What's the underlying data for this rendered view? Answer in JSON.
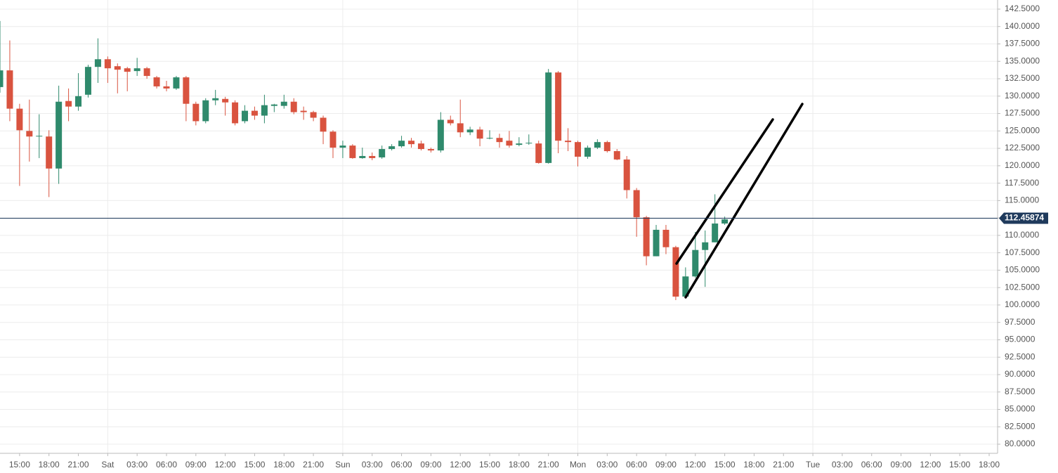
{
  "chart_data": {
    "type": "candlestick",
    "categories": [
      null,
      null,
      "15:00",
      null,
      null,
      "18:00",
      null,
      null,
      "21:00",
      null,
      null,
      "Sat",
      null,
      null,
      "03:00",
      null,
      null,
      "06:00",
      null,
      null,
      "09:00",
      null,
      null,
      "12:00",
      null,
      null,
      "15:00",
      null,
      null,
      "18:00",
      null,
      null,
      "21:00",
      null,
      null,
      "Sun",
      null,
      null,
      "03:00",
      null,
      null,
      "06:00",
      null,
      null,
      "09:00",
      null,
      null,
      "12:00",
      null,
      null,
      "15:00",
      null,
      null,
      "18:00",
      null,
      null,
      "21:00",
      null,
      null,
      "Mon",
      null,
      null,
      "03:00",
      null,
      null,
      "06:00",
      null,
      null,
      "09:00",
      null,
      null,
      "12:00",
      null,
      null,
      "15:00",
      null,
      null,
      "18:00",
      null,
      null,
      "21:00",
      null,
      null,
      "Tue",
      null,
      null,
      "03:00",
      null,
      null,
      "06:00",
      null,
      null,
      "09:00",
      null,
      null,
      "12:00",
      null,
      null,
      "15:00",
      null,
      null,
      "18:00"
    ],
    "open": [
      131.3,
      133.7,
      128.2,
      125.0,
      124.2,
      124.2,
      119.6,
      129.3,
      128.5,
      130.2,
      134.2,
      135.3,
      134.3,
      134.0,
      133.6,
      134.0,
      132.7,
      131.4,
      131.1,
      132.7,
      128.9,
      126.4,
      129.4,
      129.6,
      129.1,
      126.4,
      127.9,
      127.2,
      128.6,
      128.6,
      129.2,
      127.9,
      127.7,
      126.9,
      124.9,
      122.6,
      122.9,
      121.1,
      121.4,
      121.2,
      122.4,
      122.8,
      123.6,
      123.2,
      122.4,
      122.2,
      126.6,
      126.1,
      124.8,
      125.2,
      123.9,
      124.0,
      123.6,
      123.0,
      123.2,
      123.2,
      120.4,
      133.4,
      123.6,
      123.4,
      121.3,
      122.6,
      123.4,
      122.1,
      120.9,
      116.5,
      112.6,
      107.0,
      110.8,
      108.3,
      101.2,
      104.1,
      107.9,
      109.0,
      111.7,
      null,
      null,
      null,
      null,
      null,
      null,
      null,
      null,
      null,
      null,
      null,
      null,
      null,
      null,
      null,
      null,
      null,
      null,
      null,
      null,
      null,
      null,
      null,
      null,
      null,
      null,
      null
    ],
    "high": [
      140.8,
      138.0,
      128.9,
      129.5,
      127.4,
      125.1,
      131.5,
      131.1,
      133.3,
      134.5,
      138.3,
      135.7,
      134.7,
      134.2,
      135.5,
      134.2,
      132.9,
      132.2,
      132.9,
      132.9,
      129.2,
      129.7,
      130.9,
      129.9,
      129.4,
      128.7,
      128.5,
      130.2,
      128.9,
      130.2,
      129.7,
      128.5,
      127.9,
      127.2,
      125.1,
      123.6,
      123.1,
      122.6,
      121.9,
      122.9,
      123.1,
      124.3,
      124.0,
      123.6,
      122.6,
      127.7,
      127.2,
      129.5,
      125.6,
      125.6,
      125.1,
      124.6,
      125.0,
      124.1,
      124.5,
      123.6,
      133.9,
      133.6,
      125.4,
      123.6,
      122.9,
      123.8,
      123.6,
      122.4,
      121.4,
      116.8,
      112.8,
      111.5,
      111.5,
      108.5,
      105.4,
      110.5,
      110.7,
      115.9,
      112.7,
      null,
      null,
      null,
      null,
      null,
      null,
      null,
      null,
      null,
      null,
      null,
      null,
      null,
      null,
      null,
      null,
      null,
      null,
      null,
      null,
      null,
      null,
      null,
      null,
      null,
      null,
      null
    ],
    "low": [
      130.5,
      126.4,
      117.1,
      120.6,
      121.1,
      115.5,
      117.4,
      126.4,
      127.9,
      129.8,
      131.9,
      131.9,
      130.4,
      130.7,
      132.9,
      132.5,
      131.1,
      130.7,
      130.9,
      126.4,
      125.8,
      126.1,
      128.7,
      127.2,
      125.8,
      126.1,
      126.6,
      126.1,
      127.7,
      128.2,
      127.4,
      126.6,
      126.4,
      123.1,
      121.1,
      121.1,
      121.0,
      121.0,
      120.8,
      121.0,
      122.2,
      122.6,
      122.6,
      122.2,
      121.9,
      121.9,
      125.8,
      124.1,
      124.4,
      122.8,
      123.8,
      122.6,
      122.6,
      122.8,
      123.0,
      120.3,
      120.3,
      121.8,
      122.1,
      119.9,
      121.0,
      122.4,
      121.9,
      120.8,
      115.3,
      109.8,
      105.7,
      107.0,
      107.3,
      100.7,
      101.0,
      103.9,
      102.6,
      109.0,
      111.5,
      null,
      null,
      null,
      null,
      null,
      null,
      null,
      null,
      null,
      null,
      null,
      null,
      null,
      null,
      null,
      null,
      null,
      null,
      null,
      null,
      null,
      null,
      null,
      null,
      null,
      null,
      null
    ],
    "close": [
      133.7,
      128.2,
      125.1,
      124.2,
      124.3,
      119.6,
      129.2,
      128.5,
      130.0,
      134.2,
      135.3,
      134.0,
      133.8,
      133.5,
      134.0,
      132.9,
      131.4,
      131.1,
      132.7,
      128.9,
      126.4,
      129.4,
      129.7,
      129.1,
      126.1,
      127.9,
      127.2,
      128.7,
      128.8,
      129.2,
      127.7,
      127.7,
      126.9,
      124.9,
      122.6,
      122.9,
      121.1,
      121.4,
      121.1,
      122.4,
      122.8,
      123.6,
      123.1,
      122.4,
      122.2,
      126.6,
      126.1,
      124.8,
      125.2,
      123.9,
      124.0,
      123.4,
      122.9,
      123.2,
      123.3,
      120.4,
      133.4,
      123.6,
      123.4,
      121.3,
      122.6,
      123.4,
      122.1,
      120.9,
      116.5,
      112.6,
      107.0,
      110.8,
      108.3,
      101.2,
      104.1,
      107.9,
      109.0,
      111.7,
      112.3,
      null,
      null,
      null,
      null,
      null,
      null,
      null,
      null,
      null,
      null,
      null,
      null,
      null,
      null,
      null,
      null,
      null,
      null,
      null,
      null,
      null,
      null,
      null,
      null,
      null,
      null,
      null
    ],
    "up_color": "#2f8a6c",
    "down_color": "#d9533f",
    "last_price": 112.45874,
    "last_price_color": "#1f3a5c",
    "ylim": [
      78.69,
      143.81
    ],
    "yticks": [
      {
        "value": 80,
        "label": "80.0000"
      },
      {
        "value": 82.5,
        "label": "82.5000"
      },
      {
        "value": 85,
        "label": "85.0000"
      },
      {
        "value": 87.5,
        "label": "87.5000"
      },
      {
        "value": 90,
        "label": "90.0000"
      },
      {
        "value": 92.5,
        "label": "92.5000"
      },
      {
        "value": 95,
        "label": "95.0000"
      },
      {
        "value": 97.5,
        "label": "97.5000"
      },
      {
        "value": 100,
        "label": "100.0000"
      },
      {
        "value": 102.5,
        "label": "102.5000"
      },
      {
        "value": 105,
        "label": "105.0000"
      },
      {
        "value": 107.5,
        "label": "107.5000"
      },
      {
        "value": 110,
        "label": "110.0000"
      },
      {
        "value": 112.5,
        "label": "112.5000"
      },
      {
        "value": 115,
        "label": "115.0000"
      },
      {
        "value": 117.5,
        "label": "117.5000"
      },
      {
        "value": 120,
        "label": "120.0000"
      },
      {
        "value": 122.5,
        "label": "122.5000"
      },
      {
        "value": 125,
        "label": "125.0000"
      },
      {
        "value": 127.5,
        "label": "127.5000"
      },
      {
        "value": 130,
        "label": "130.0000"
      },
      {
        "value": 132.5,
        "label": "132.5000"
      },
      {
        "value": 135,
        "label": "135.0000"
      },
      {
        "value": 137.5,
        "label": "137.5000"
      },
      {
        "value": 140,
        "label": "140.0000"
      },
      {
        "value": 142.5,
        "label": "142.5000"
      }
    ],
    "grid": true
  }
}
